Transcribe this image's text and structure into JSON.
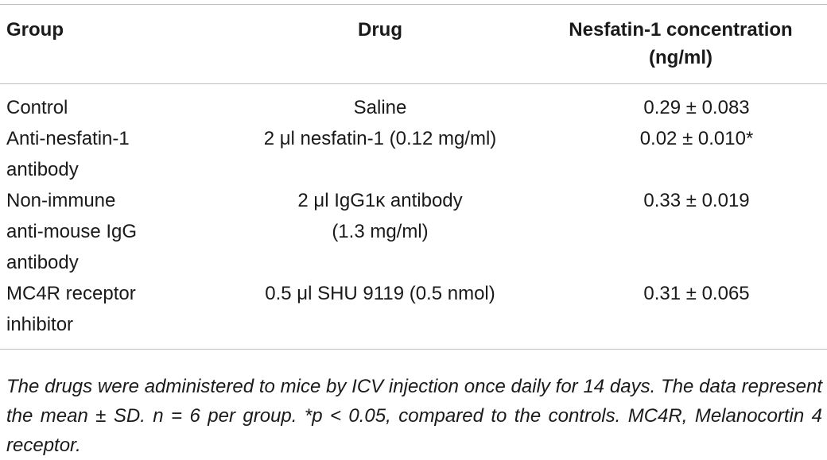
{
  "table": {
    "headers": {
      "group": "Group",
      "drug": "Drug",
      "concentration_line1": "Nesfatin-1 concentration",
      "concentration_line2": "(ng/ml)"
    },
    "rows": [
      {
        "group_lines": [
          "Control"
        ],
        "drug_lines": [
          "Saline"
        ],
        "concentration": "0.29 ± 0.083"
      },
      {
        "group_lines": [
          "Anti-nesfatin-1",
          "antibody"
        ],
        "drug_lines": [
          "2 μl nesfatin-1 (0.12 mg/ml)"
        ],
        "concentration": "0.02 ± 0.010*"
      },
      {
        "group_lines": [
          "Non-immune",
          "anti-mouse IgG",
          "antibody"
        ],
        "drug_lines": [
          "2 μl IgG1κ antibody",
          "(1.3 mg/ml)"
        ],
        "concentration": "0.33 ± 0.019"
      },
      {
        "group_lines": [
          "MC4R receptor",
          "inhibitor"
        ],
        "drug_lines": [
          "0.5 μl SHU 9119 (0.5 nmol)"
        ],
        "concentration": "0.31 ± 0.065"
      }
    ]
  },
  "footnote": "The drugs were administered to mice by ICV injection once daily for 14 days. The data represent the mean ± SD. n = 6 per group. *p < 0.05, compared to the controls. MC4R, Melanocortin 4 receptor."
}
